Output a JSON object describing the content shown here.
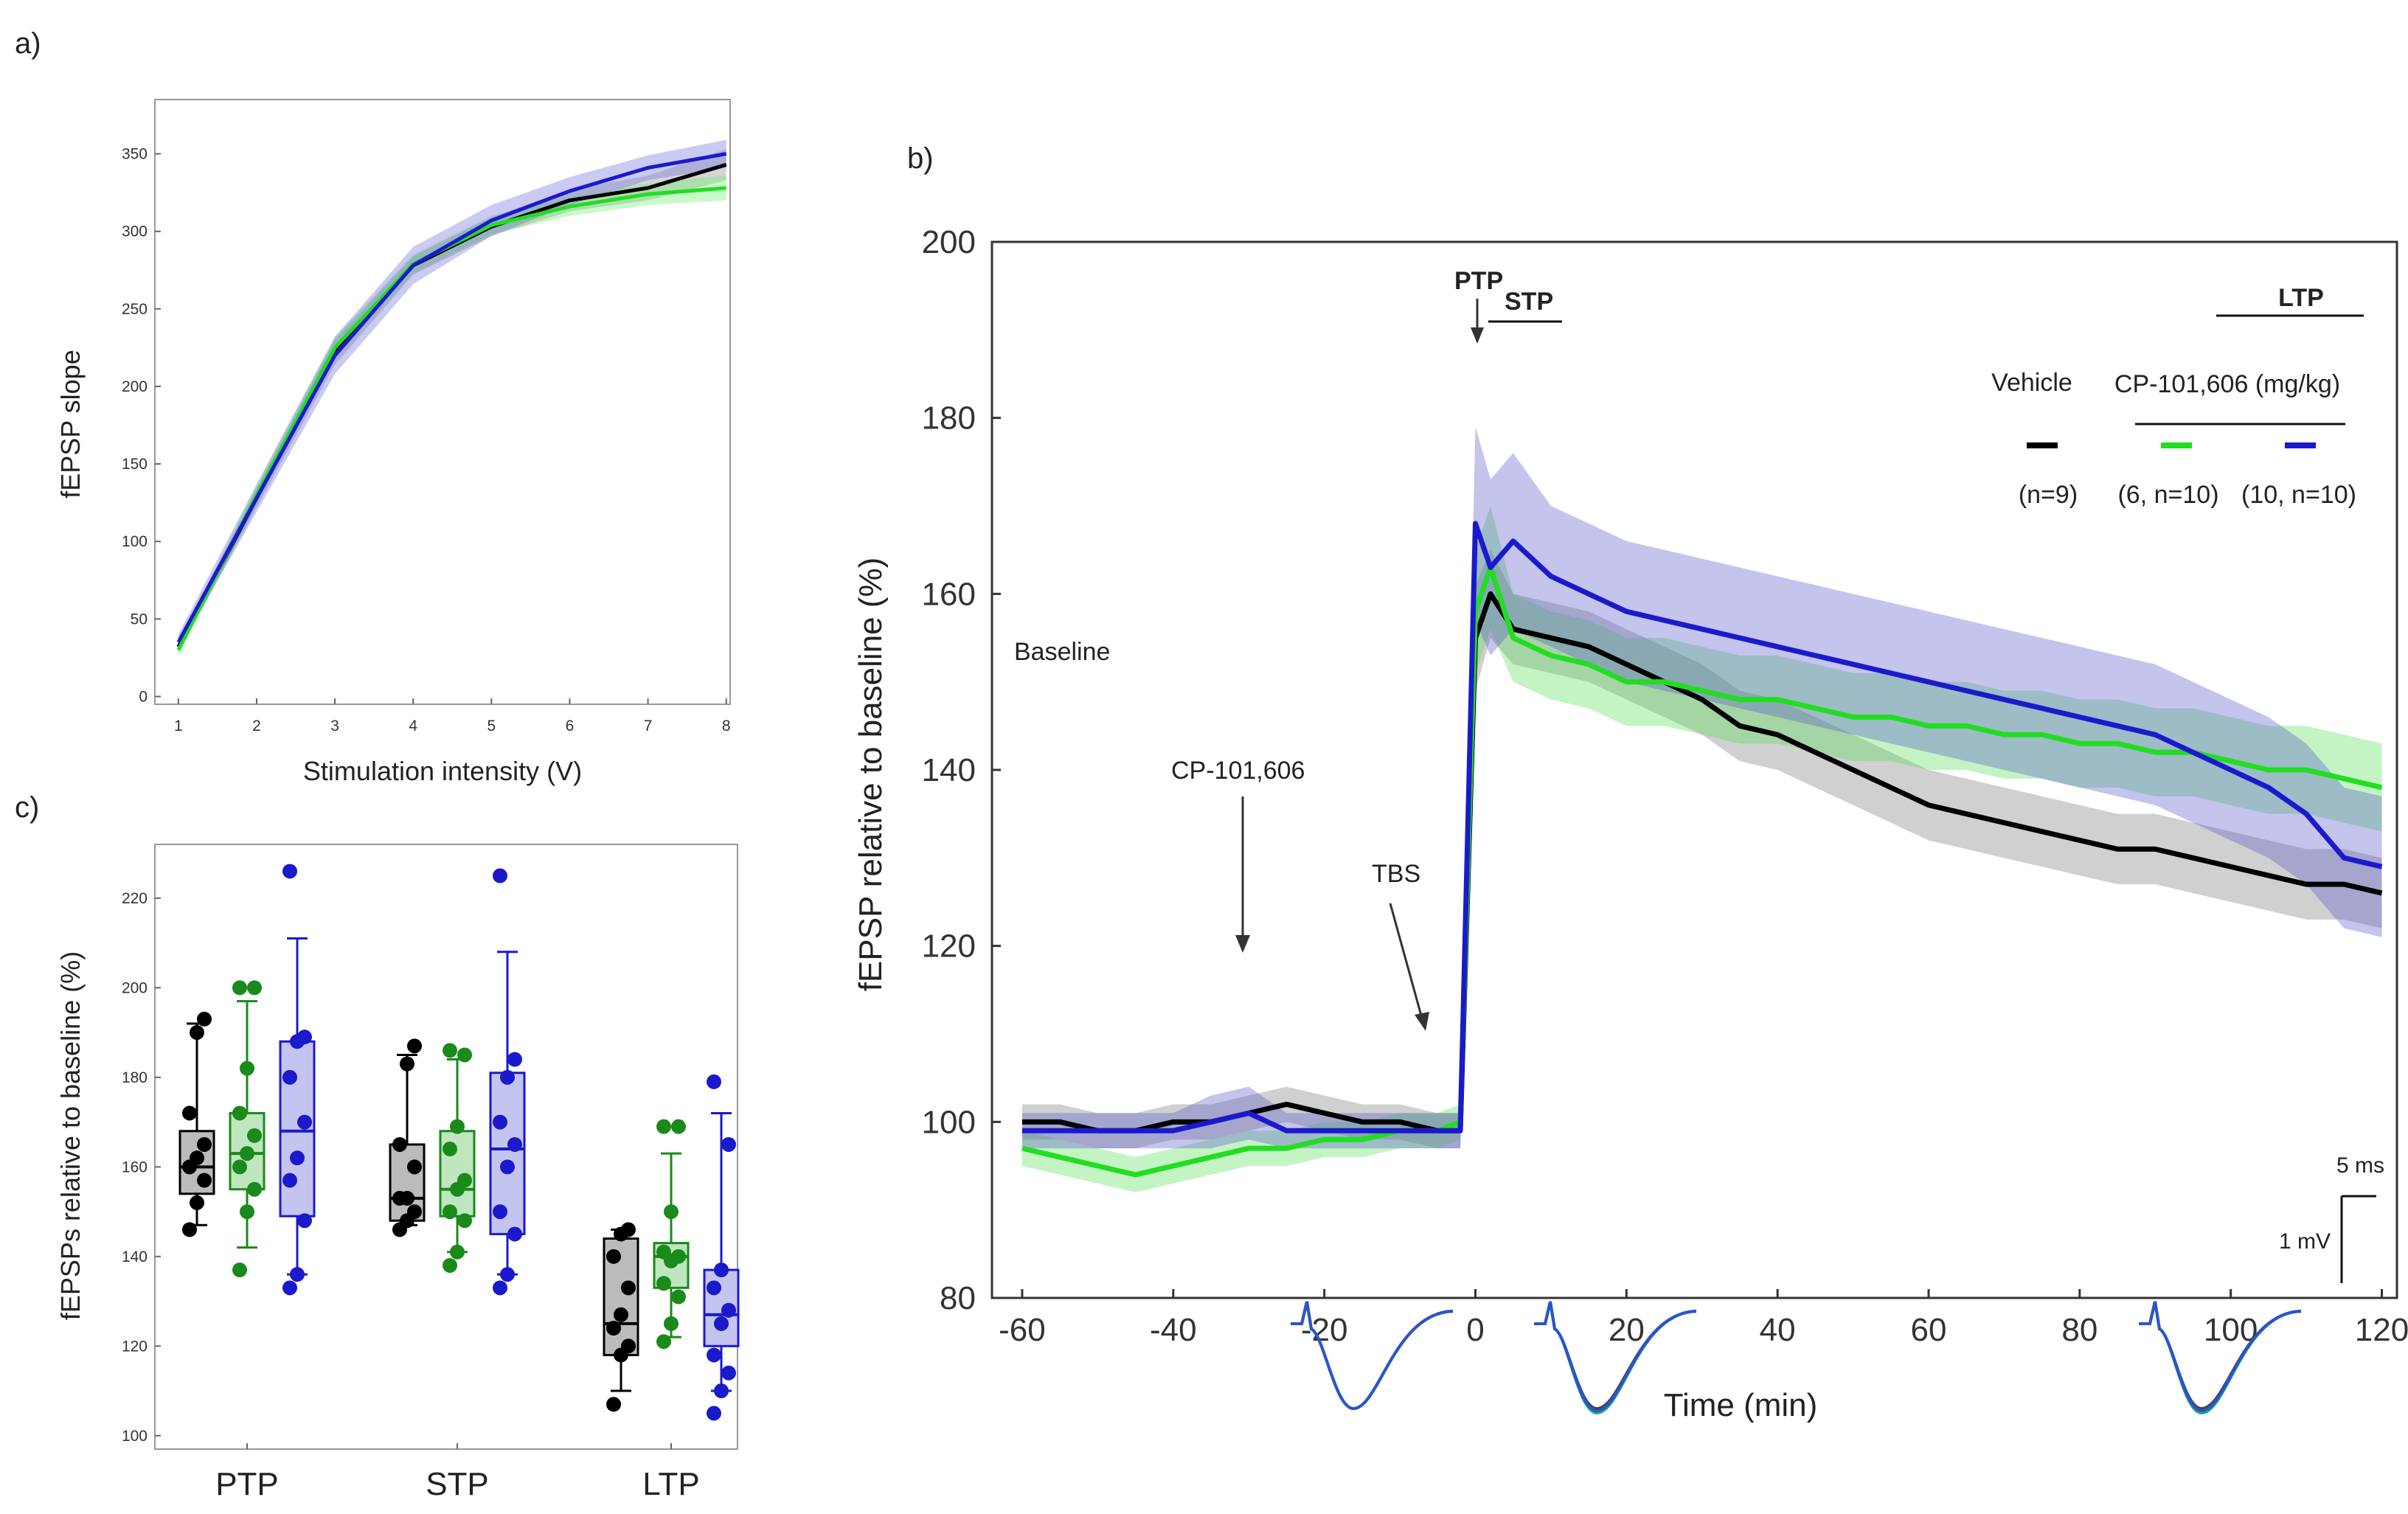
{
  "colors": {
    "vehicle": "#000000",
    "cp6": "#22dd22",
    "cp10": "#1a1acc",
    "cp6_box": "#1a8a1a"
  },
  "chart_data": [
    {
      "panel": "a)",
      "type": "line",
      "xlabel": "Stimulation intensity (V)",
      "ylabel": "fEPSP slope",
      "xlim": [
        0.7,
        8.05
      ],
      "ylim": [
        -5,
        385
      ],
      "xticks": [
        1,
        2,
        3,
        4,
        5,
        6,
        7,
        8
      ],
      "yticks": [
        0,
        50,
        100,
        150,
        200,
        250,
        300,
        350
      ],
      "x": [
        1,
        2,
        3,
        4,
        5,
        6,
        7,
        8
      ],
      "series": [
        {
          "key": "vehicle",
          "values": [
            32,
            128,
            222,
            278,
            303,
            320,
            328,
            343
          ],
          "sem": [
            4,
            6,
            8,
            6,
            6,
            7,
            8,
            10
          ]
        },
        {
          "key": "cp6",
          "values": [
            30,
            130,
            225,
            279,
            304,
            316,
            324,
            328
          ],
          "sem": [
            4,
            6,
            7,
            6,
            6,
            6,
            7,
            8
          ]
        },
        {
          "key": "cp10",
          "values": [
            35,
            128,
            220,
            278,
            307,
            326,
            341,
            350
          ],
          "sem": [
            5,
            9,
            12,
            12,
            10,
            9,
            8,
            9
          ]
        }
      ]
    },
    {
      "panel": "b)",
      "type": "line",
      "xlabel": "Time (min)",
      "ylabel": "fEPSP relative to baseline (%)",
      "xlim": [
        -64,
        122
      ],
      "ylim": [
        80,
        200
      ],
      "xticks": [
        -60,
        -40,
        -20,
        0,
        20,
        40,
        60,
        80,
        100,
        120
      ],
      "yticks": [
        80,
        100,
        120,
        140,
        160,
        180,
        200
      ],
      "series": [
        {
          "key": "vehicle",
          "legend_label": "Vehicle",
          "n_label": "(n=9)",
          "x": [
            -60,
            -55,
            -50,
            -45,
            -40,
            -35,
            -30,
            -25,
            -20,
            -15,
            -10,
            -5,
            -2,
            0,
            2,
            5,
            10,
            15,
            20,
            25,
            30,
            35,
            40,
            45,
            50,
            55,
            60,
            65,
            70,
            75,
            80,
            85,
            90,
            95,
            100,
            105,
            110,
            115,
            120
          ],
          "y": [
            100,
            100,
            99,
            99,
            100,
            100,
            101,
            102,
            101,
            100,
            100,
            99,
            99,
            155,
            160,
            156,
            155,
            154,
            152,
            150,
            148,
            145,
            144,
            142,
            140,
            138,
            136,
            135,
            134,
            133,
            132,
            131,
            131,
            130,
            129,
            128,
            127,
            127,
            126
          ],
          "sem": [
            2,
            2,
            2,
            2,
            2,
            2,
            2,
            2,
            2,
            2,
            2,
            2,
            2,
            6,
            5,
            4,
            4,
            4,
            4,
            4,
            4,
            4,
            4,
            4,
            4,
            4,
            4,
            4,
            4,
            4,
            4,
            4,
            4,
            4,
            4,
            4,
            4,
            4,
            4
          ]
        },
        {
          "key": "cp6",
          "legend_label": "(6, n=10)",
          "x": [
            -60,
            -55,
            -50,
            -45,
            -40,
            -35,
            -30,
            -25,
            -20,
            -15,
            -10,
            -5,
            -2,
            0,
            2,
            5,
            10,
            15,
            20,
            25,
            30,
            35,
            40,
            45,
            50,
            55,
            60,
            65,
            70,
            75,
            80,
            85,
            90,
            95,
            100,
            105,
            110,
            115,
            120
          ],
          "y": [
            97,
            96,
            95,
            94,
            95,
            96,
            97,
            97,
            98,
            98,
            99,
            99,
            100,
            158,
            163,
            155,
            153,
            152,
            150,
            150,
            149,
            148,
            148,
            147,
            146,
            146,
            145,
            145,
            144,
            144,
            143,
            143,
            142,
            142,
            141,
            140,
            140,
            139,
            138
          ],
          "sem": [
            2,
            2,
            2,
            2,
            2,
            2,
            2,
            2,
            2,
            2,
            2,
            2,
            2,
            7,
            7,
            5,
            5,
            5,
            5,
            5,
            5,
            5,
            5,
            5,
            5,
            5,
            5,
            5,
            5,
            5,
            5,
            5,
            5,
            5,
            5,
            5,
            5,
            5,
            5
          ]
        },
        {
          "key": "cp10",
          "legend_label": "(10, n=10)",
          "x": [
            -60,
            -55,
            -50,
            -45,
            -40,
            -35,
            -30,
            -25,
            -20,
            -15,
            -10,
            -5,
            -2,
            0,
            2,
            5,
            10,
            15,
            20,
            25,
            30,
            35,
            40,
            45,
            50,
            55,
            60,
            65,
            70,
            75,
            80,
            85,
            90,
            95,
            100,
            105,
            110,
            115,
            120
          ],
          "y": [
            99,
            99,
            99,
            99,
            99,
            100,
            101,
            99,
            99,
            99,
            99,
            99,
            99,
            168,
            163,
            166,
            162,
            160,
            158,
            157,
            156,
            155,
            154,
            153,
            152,
            151,
            150,
            149,
            148,
            147,
            146,
            145,
            144,
            142,
            140,
            138,
            135,
            130,
            129
          ],
          "sem": [
            2,
            2,
            2,
            2,
            2,
            3,
            3,
            2,
            2,
            2,
            2,
            2,
            2,
            11,
            10,
            10,
            8,
            8,
            8,
            8,
            8,
            8,
            8,
            8,
            8,
            8,
            8,
            8,
            8,
            8,
            8,
            8,
            8,
            8,
            8,
            8,
            8,
            8,
            8
          ]
        }
      ],
      "legend_header": "CP-101,606 (mg/kg)",
      "annotations": {
        "ptp": "PTP",
        "stp": "STP",
        "ltp": "LTP",
        "baseline": "Baseline",
        "drug": "CP-101,606",
        "tbs": "TBS"
      },
      "scale_bar": {
        "time": "5 ms",
        "amp": "1 mV"
      }
    },
    {
      "panel": "c)",
      "type": "box",
      "ylabel": "fEPSPs relative to baseline (%)",
      "categories": [
        "PTP",
        "STP",
        "LTP"
      ],
      "ylim": [
        97,
        232
      ],
      "yticks": [
        100,
        120,
        140,
        160,
        180,
        200,
        220
      ],
      "groups": [
        {
          "category": "PTP",
          "boxes": [
            {
              "key": "vehicle",
              "q1": 154,
              "median": 160,
              "q3": 168,
              "min": 147,
              "max": 192,
              "points": [
                146,
                152,
                157,
                160,
                162,
                165,
                172,
                190,
                193
              ]
            },
            {
              "key": "cp6",
              "q1": 155,
              "median": 163,
              "q3": 172,
              "min": 142,
              "max": 197,
              "points": [
                137,
                150,
                155,
                160,
                163,
                167,
                172,
                182,
                200,
                200
              ]
            },
            {
              "key": "cp10",
              "q1": 149,
              "median": 168,
              "q3": 188,
              "min": 136,
              "max": 211,
              "points": [
                133,
                136,
                148,
                157,
                162,
                170,
                180,
                188,
                189,
                226
              ]
            }
          ]
        },
        {
          "category": "STP",
          "boxes": [
            {
              "key": "vehicle",
              "q1": 148,
              "median": 153,
              "q3": 165,
              "min": 147,
              "max": 185,
              "points": [
                146,
                148,
                150,
                153,
                153,
                160,
                165,
                183,
                187
              ]
            },
            {
              "key": "cp6",
              "q1": 149,
              "median": 155,
              "q3": 168,
              "min": 141,
              "max": 184,
              "points": [
                138,
                141,
                148,
                150,
                155,
                157,
                164,
                169,
                185,
                186
              ]
            },
            {
              "key": "cp10",
              "q1": 145,
              "median": 164,
              "q3": 181,
              "min": 136,
              "max": 208,
              "points": [
                133,
                136,
                145,
                150,
                160,
                165,
                170,
                180,
                184,
                225
              ]
            }
          ]
        },
        {
          "category": "LTP",
          "boxes": [
            {
              "key": "vehicle",
              "q1": 118,
              "median": 125,
              "q3": 144,
              "min": 110,
              "max": 146,
              "points": [
                107,
                118,
                120,
                124,
                127,
                133,
                140,
                145,
                146
              ]
            },
            {
              "key": "cp6",
              "q1": 133,
              "median": 140,
              "q3": 143,
              "min": 122,
              "max": 163,
              "points": [
                121,
                125,
                131,
                134,
                139,
                140,
                141,
                150,
                169,
                169
              ]
            },
            {
              "key": "cp10",
              "q1": 120,
              "median": 127,
              "q3": 137,
              "min": 110,
              "max": 172,
              "points": [
                105,
                110,
                114,
                118,
                125,
                128,
                133,
                137,
                165,
                179
              ]
            }
          ]
        }
      ]
    }
  ]
}
